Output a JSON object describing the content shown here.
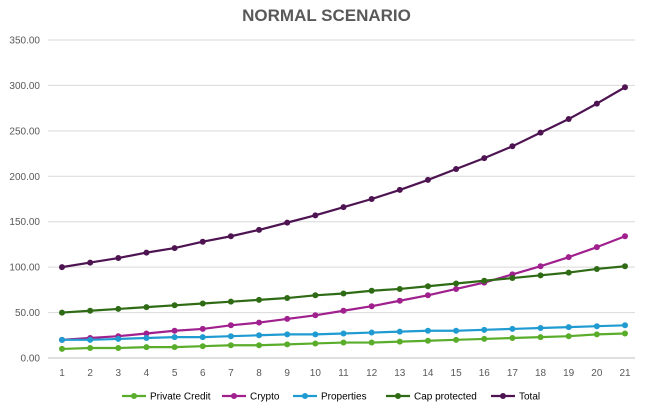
{
  "chart_data": {
    "type": "line",
    "title": "NORMAL SCENARIO",
    "xlabel": "",
    "ylabel": "",
    "categories": [
      "1",
      "2",
      "3",
      "4",
      "5",
      "6",
      "7",
      "8",
      "9",
      "10",
      "11",
      "12",
      "13",
      "14",
      "15",
      "16",
      "17",
      "18",
      "19",
      "20",
      "21"
    ],
    "ylim": [
      0,
      350
    ],
    "y_ticks": [
      "0.00",
      "50.00",
      "100.00",
      "150.00",
      "200.00",
      "250.00",
      "300.00",
      "350.00"
    ],
    "grid": "horizontal",
    "legend_position": "bottom",
    "series": [
      {
        "name": "Private Credit",
        "color": "#5aad2b",
        "values": [
          10,
          11,
          11,
          12,
          12,
          13,
          14,
          14,
          15,
          16,
          17,
          17,
          18,
          19,
          20,
          21,
          22,
          23,
          24,
          26,
          27
        ]
      },
      {
        "name": "Crypto",
        "color": "#a0208e",
        "values": [
          20,
          22,
          24,
          27,
          30,
          32,
          36,
          39,
          43,
          47,
          52,
          57,
          63,
          69,
          76,
          83,
          92,
          101,
          111,
          122,
          134
        ]
      },
      {
        "name": "Properties",
        "color": "#1f9bd1",
        "values": [
          20,
          20,
          21,
          22,
          23,
          23,
          24,
          25,
          26,
          26,
          27,
          28,
          29,
          30,
          30,
          31,
          32,
          33,
          34,
          35,
          36
        ]
      },
      {
        "name": "Cap protected",
        "color": "#2e6b14",
        "values": [
          50,
          52,
          54,
          56,
          58,
          60,
          62,
          64,
          66,
          69,
          71,
          74,
          76,
          79,
          82,
          85,
          88,
          91,
          94,
          98,
          101
        ]
      },
      {
        "name": "Total",
        "color": "#4e1452",
        "values": [
          100,
          105,
          110,
          116,
          121,
          128,
          134,
          141,
          149,
          157,
          166,
          175,
          185,
          196,
          208,
          220,
          233,
          248,
          263,
          280,
          298
        ]
      }
    ]
  }
}
